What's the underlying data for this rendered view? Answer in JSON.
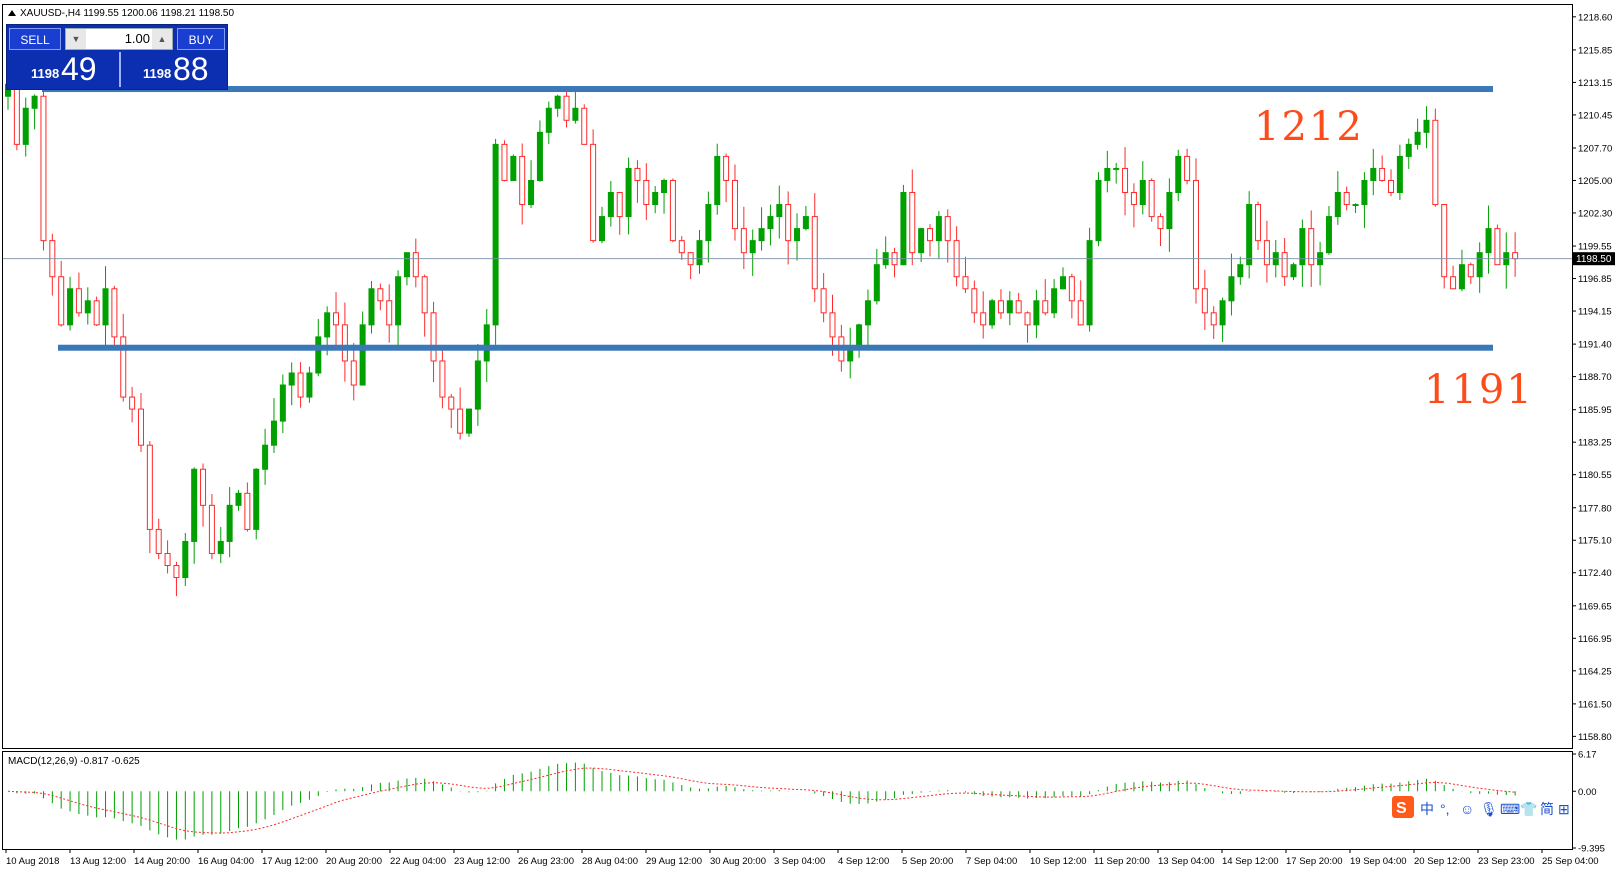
{
  "chart_header": {
    "symbol_title": "XAUUSD-,H4  1199.55 1200.06 1198.21 1198.50"
  },
  "trade_panel": {
    "sell_label": "SELL",
    "buy_label": "BUY",
    "lot_value": "1.00",
    "sell_small": "1198",
    "sell_big": "49",
    "buy_small": "1198",
    "buy_big": "88"
  },
  "annotations": {
    "resistance_label": "1212",
    "support_label": "1191"
  },
  "macd_header": "MACD(12,26,9) -0.817 -0.625",
  "colors": {
    "bull": "#00a000",
    "bear": "#ff2a2a",
    "level_line": "#3b78b8",
    "annotation": "#ff4a1a",
    "panel_bg": "#0b2fb0"
  },
  "chart_data": {
    "type": "candlestick",
    "symbol": "XAUUSD-",
    "timeframe": "H4",
    "current_price": 1198.5,
    "current_price_label": "1198.50",
    "ylim": [
      1158.0,
      1219.5
    ],
    "y_ticks": [
      "1218.60",
      "1215.85",
      "1213.15",
      "1210.45",
      "1207.70",
      "1205.00",
      "1202.30",
      "1199.55",
      "1196.85",
      "1194.15",
      "1191.40",
      "1188.70",
      "1185.95",
      "1183.25",
      "1180.55",
      "1177.80",
      "1175.10",
      "1172.40",
      "1169.65",
      "1166.95",
      "1164.25",
      "1161.50",
      "1158.80"
    ],
    "x_ticks": [
      "10 Aug 2018",
      "13 Aug 12:00",
      "14 Aug 20:00",
      "16 Aug 04:00",
      "17 Aug 12:00",
      "20 Aug 20:00",
      "22 Aug 04:00",
      "23 Aug 12:00",
      "26 Aug 23:00",
      "28 Aug 04:00",
      "29 Aug 12:00",
      "30 Aug 20:00",
      "3 Sep 04:00",
      "4 Sep 12:00",
      "5 Sep 20:00",
      "7 Sep 04:00",
      "10 Sep 12:00",
      "11 Sep 20:00",
      "13 Sep 04:00",
      "14 Sep 12:00",
      "17 Sep 20:00",
      "19 Sep 04:00",
      "20 Sep 12:00",
      "23 Sep 23:00",
      "25 Sep 04:00"
    ],
    "horizontal_levels": [
      {
        "label": "1212",
        "value": 1212.6
      },
      {
        "label": "1191",
        "value": 1191.1
      }
    ],
    "closes": [
      1213,
      1208,
      1211,
      1212,
      1200,
      1197,
      1193,
      1196,
      1194,
      1195,
      1193,
      1196,
      1192,
      1187,
      1186,
      1183,
      1176,
      1174,
      1173,
      1172,
      1175,
      1181,
      1178,
      1174,
      1175,
      1178,
      1179,
      1176,
      1181,
      1183,
      1185,
      1188,
      1189,
      1187,
      1189,
      1192,
      1194,
      1193,
      1190,
      1188,
      1193,
      1196,
      1195,
      1193,
      1197,
      1199,
      1197,
      1194,
      1190,
      1187,
      1186,
      1184,
      1186,
      1190,
      1193,
      1208,
      1205,
      1207,
      1203,
      1205,
      1209,
      1211,
      1212,
      1210,
      1211,
      1208,
      1200,
      1202,
      1204,
      1202,
      1206,
      1205,
      1203,
      1204,
      1205,
      1200,
      1199,
      1198,
      1200,
      1203,
      1207,
      1205,
      1201,
      1199,
      1200,
      1201,
      1202,
      1203,
      1200,
      1201,
      1202,
      1196,
      1194,
      1192,
      1190,
      1191,
      1193,
      1195,
      1198,
      1199,
      1198,
      1204,
      1199,
      1201,
      1200,
      1202,
      1200,
      1197,
      1196,
      1194,
      1193,
      1195,
      1194,
      1195,
      1194,
      1193,
      1195,
      1194,
      1196,
      1197,
      1195,
      1193,
      1200,
      1205,
      1206,
      1206,
      1204,
      1203,
      1205,
      1202,
      1201,
      1204,
      1207,
      1205,
      1196,
      1194,
      1193,
      1195,
      1197,
      1198,
      1203,
      1200,
      1198,
      1199,
      1197,
      1198,
      1201,
      1198,
      1199,
      1202,
      1204,
      1203,
      1203,
      1205,
      1206,
      1205,
      1204,
      1207,
      1208,
      1209,
      1210,
      1203,
      1197,
      1196,
      1198,
      1197,
      1199,
      1201,
      1198,
      1199,
      1198.5
    ],
    "macd": {
      "params": "12,26,9",
      "main": -0.817,
      "signal": -0.625,
      "ylim": [
        -9.395,
        6.17
      ],
      "y_ticks": [
        "6.17",
        "0.00",
        "-9.395"
      ]
    }
  }
}
